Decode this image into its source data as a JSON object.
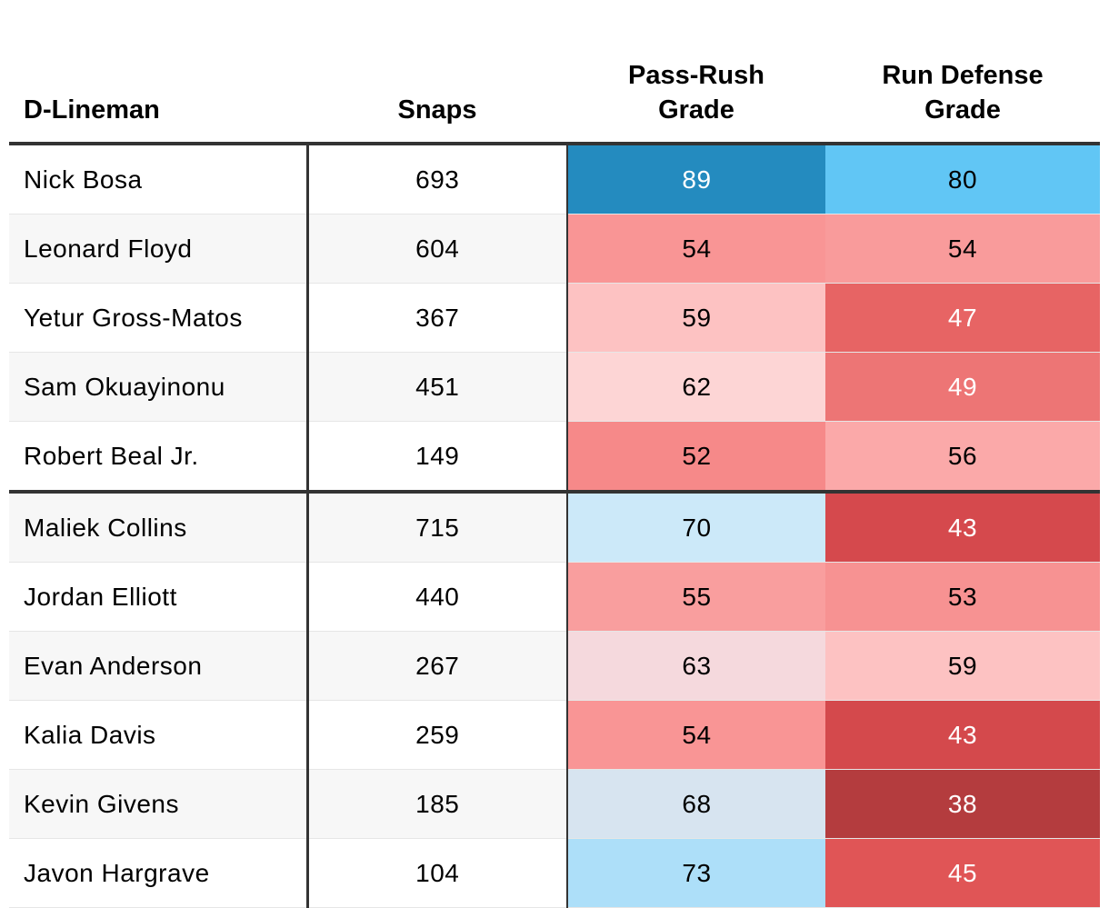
{
  "table": {
    "headers": {
      "name": "D-Lineman",
      "snaps": "Snaps",
      "pass_rush_line1": "Pass-Rush",
      "pass_rush_line2": "Grade",
      "run_defense_line1": "Run Defense",
      "run_defense_line2": "Grade"
    }
  },
  "colors": {
    "text_dark": "#000000",
    "text_light": "#ffffff",
    "rule": "#333333",
    "stripe": "#f7f7f7",
    "row_divider": "#e6e6e6"
  },
  "chart_data": {
    "type": "table",
    "title": "",
    "columns": [
      "D-Lineman",
      "Snaps",
      "Pass-Rush Grade",
      "Run Defense Grade"
    ],
    "groups": [
      {
        "rows": [
          0,
          1,
          2,
          3,
          4
        ]
      },
      {
        "rows": [
          5,
          6,
          7,
          8,
          9,
          10
        ]
      }
    ],
    "rows": [
      {
        "name": "Nick Bosa",
        "snaps": 693,
        "pass_rush": 89,
        "run_defense": 80,
        "pass_rush_color": "#248bbf",
        "run_defense_color": "#61c6f5",
        "pass_rush_text": "#ffffff",
        "run_defense_text": "#000000"
      },
      {
        "name": "Leonard Floyd",
        "snaps": 604,
        "pass_rush": 54,
        "run_defense": 54,
        "pass_rush_color": "#f99595",
        "run_defense_color": "#f99b9b",
        "pass_rush_text": "#000000",
        "run_defense_text": "#000000"
      },
      {
        "name": "Yetur Gross-Matos",
        "snaps": 367,
        "pass_rush": 59,
        "run_defense": 47,
        "pass_rush_color": "#fdc2c2",
        "run_defense_color": "#e76464",
        "pass_rush_text": "#000000",
        "run_defense_text": "#ffffff"
      },
      {
        "name": "Sam Okuayinonu",
        "snaps": 451,
        "pass_rush": 62,
        "run_defense": 49,
        "pass_rush_color": "#fdd5d5",
        "run_defense_color": "#ed7575",
        "pass_rush_text": "#000000",
        "run_defense_text": "#ffffff"
      },
      {
        "name": "Robert Beal Jr.",
        "snaps": 149,
        "pass_rush": 52,
        "run_defense": 56,
        "pass_rush_color": "#f68989",
        "run_defense_color": "#fba9a9",
        "pass_rush_text": "#000000",
        "run_defense_text": "#000000"
      },
      {
        "name": "Maliek Collins",
        "snaps": 715,
        "pass_rush": 70,
        "run_defense": 43,
        "pass_rush_color": "#cce9f9",
        "run_defense_color": "#d5494d",
        "pass_rush_text": "#000000",
        "run_defense_text": "#ffffff"
      },
      {
        "name": "Jordan Elliott",
        "snaps": 440,
        "pass_rush": 55,
        "run_defense": 53,
        "pass_rush_color": "#f99e9e",
        "run_defense_color": "#f79292",
        "pass_rush_text": "#000000",
        "run_defense_text": "#000000"
      },
      {
        "name": "Evan Anderson",
        "snaps": 267,
        "pass_rush": 63,
        "run_defense": 59,
        "pass_rush_color": "#f5d9dd",
        "run_defense_color": "#fdc2c2",
        "pass_rush_text": "#000000",
        "run_defense_text": "#000000"
      },
      {
        "name": "Kalia Davis",
        "snaps": 259,
        "pass_rush": 54,
        "run_defense": 43,
        "pass_rush_color": "#f99595",
        "run_defense_color": "#d4494c",
        "pass_rush_text": "#000000",
        "run_defense_text": "#ffffff"
      },
      {
        "name": "Kevin Givens",
        "snaps": 185,
        "pass_rush": 68,
        "run_defense": 38,
        "pass_rush_color": "#d7e4f0",
        "run_defense_color": "#b43c3e",
        "pass_rush_text": "#000000",
        "run_defense_text": "#ffffff"
      },
      {
        "name": "Javon Hargrave",
        "snaps": 104,
        "pass_rush": 73,
        "run_defense": 45,
        "pass_rush_color": "#addff9",
        "run_defense_color": "#e05556",
        "pass_rush_text": "#000000",
        "run_defense_text": "#ffffff"
      }
    ]
  }
}
